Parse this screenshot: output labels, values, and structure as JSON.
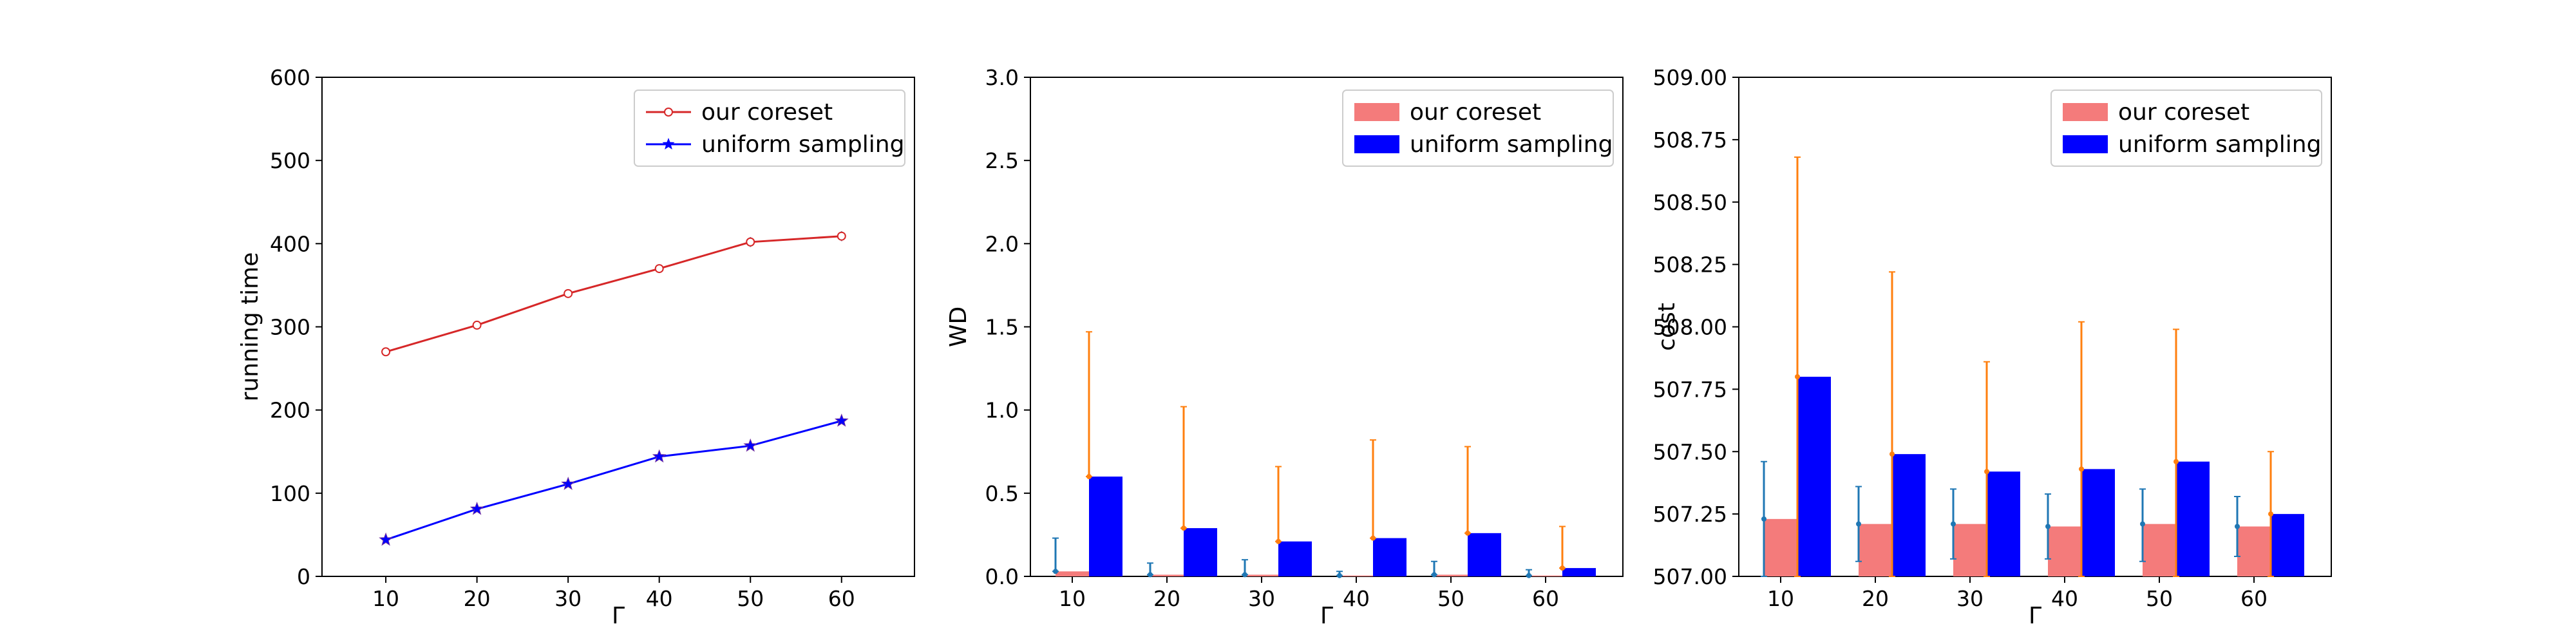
{
  "colors": {
    "coreset_line": "#d62728",
    "uniform_line": "#0000ff",
    "coreset_bar": "#f47b7b",
    "uniform_bar": "#0000ff",
    "coreset_err": "#1f77b4",
    "uniform_err": "#ff7f0e"
  },
  "chart_data": [
    {
      "type": "line",
      "xlabel": "Γ",
      "ylabel": "running time",
      "x": [
        10,
        20,
        30,
        40,
        50,
        60
      ],
      "xlim": [
        3,
        68
      ],
      "ylim": [
        0,
        600
      ],
      "xticks": [
        "10",
        "20",
        "30",
        "40",
        "50",
        "60"
      ],
      "yticks": [
        "0",
        "100",
        "200",
        "300",
        "400",
        "500",
        "600"
      ],
      "grid": false,
      "legend_position": "top-right",
      "series": [
        {
          "name": "our coreset",
          "marker": "circle",
          "values": [
            270,
            302,
            340,
            370,
            402,
            409
          ],
          "err": [
            4,
            4,
            4,
            5,
            6,
            6
          ]
        },
        {
          "name": "uniform sampling",
          "marker": "star",
          "values": [
            44,
            81,
            111,
            144,
            157,
            187
          ],
          "err": [
            2,
            2,
            2,
            2,
            2,
            2
          ]
        }
      ]
    },
    {
      "type": "bar",
      "xlabel": "Γ",
      "ylabel": "WD",
      "categories": [
        "10",
        "20",
        "30",
        "40",
        "50",
        "60"
      ],
      "ylim": [
        0,
        3.0
      ],
      "yticks": [
        "0.0",
        "0.5",
        "1.0",
        "1.5",
        "2.0",
        "2.5",
        "3.0"
      ],
      "grid": false,
      "legend_position": "top-right",
      "series": [
        {
          "name": "our coreset",
          "values": [
            0.03,
            0.01,
            0.01,
            0.005,
            0.01,
            0.005
          ],
          "err_low": [
            0.03,
            0.01,
            0.01,
            0.005,
            0.01,
            0.005
          ],
          "err_high": [
            0.23,
            0.08,
            0.1,
            0.03,
            0.09,
            0.04
          ]
        },
        {
          "name": "uniform sampling",
          "values": [
            0.6,
            0.29,
            0.21,
            0.23,
            0.26,
            0.05
          ],
          "err_low": [
            0.6,
            0.29,
            0.21,
            0.23,
            0.26,
            0.05
          ],
          "err_high": [
            1.47,
            1.02,
            0.66,
            0.82,
            0.78,
            0.3
          ]
        }
      ]
    },
    {
      "type": "bar",
      "xlabel": "Γ",
      "ylabel": "cost",
      "categories": [
        "10",
        "20",
        "30",
        "40",
        "50",
        "60"
      ],
      "ylim": [
        507.0,
        509.0
      ],
      "yticks": [
        "507.00",
        "507.25",
        "507.50",
        "507.75",
        "508.00",
        "508.25",
        "508.50",
        "508.75",
        "509.00"
      ],
      "grid": false,
      "legend_position": "top-right",
      "series": [
        {
          "name": "our coreset",
          "values": [
            507.23,
            507.21,
            507.21,
            507.2,
            507.21,
            507.2
          ],
          "err_low": [
            507.0,
            507.06,
            507.07,
            507.07,
            507.06,
            507.08
          ],
          "err_high": [
            507.46,
            507.36,
            507.35,
            507.33,
            507.35,
            507.32
          ]
        },
        {
          "name": "uniform sampling",
          "values": [
            507.8,
            507.49,
            507.42,
            507.43,
            507.46,
            507.25
          ],
          "err_low": [
            507.0,
            507.0,
            507.0,
            507.0,
            507.0,
            507.0
          ],
          "err_high": [
            508.68,
            508.22,
            507.86,
            508.02,
            507.99,
            507.5
          ]
        }
      ]
    }
  ]
}
